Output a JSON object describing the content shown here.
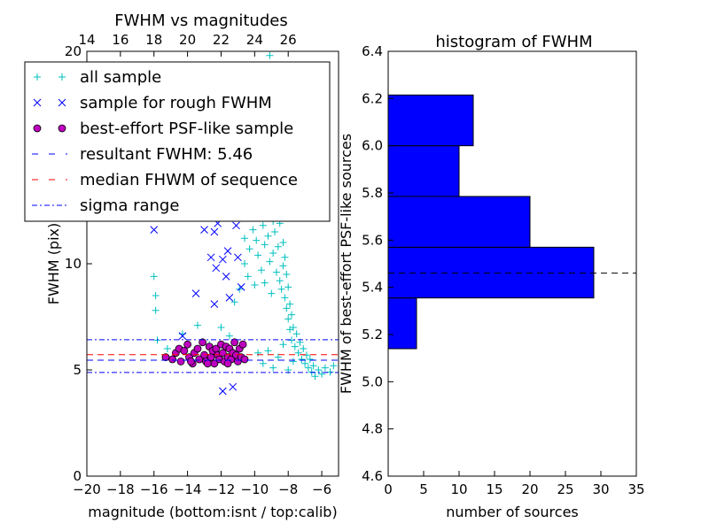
{
  "chart_data": [
    {
      "type": "scatter",
      "title": "FWHM vs magnitudes",
      "xlabel": "magnitude (bottom:isnt / top:calib)",
      "ylabel": "FWHM (pix)",
      "xlim": [
        -20,
        -5
      ],
      "ylim": [
        0,
        20
      ],
      "xticks": [
        "−20",
        "−18",
        "−16",
        "−14",
        "−12",
        "−10",
        "−8",
        "−6"
      ],
      "xtick_values": [
        -20,
        -18,
        -16,
        -14,
        -12,
        -10,
        -8,
        -6
      ],
      "yticks": [
        "0",
        "5",
        "10",
        "20"
      ],
      "ytick_values": [
        0,
        5,
        10,
        20
      ],
      "top_xticks": [
        "14",
        "16",
        "18",
        "20",
        "22",
        "24",
        "26"
      ],
      "top_xtick_values": [
        14,
        16,
        18,
        20,
        22,
        24,
        26
      ],
      "top_axis_offset": 34,
      "legend": {
        "placement": "upper-left",
        "entries": [
          "all sample",
          "sample for rough FWHM",
          "best-effort PSF-like sample",
          "resultant FWHM: 5.46",
          "median FHWM of sequence",
          "sigma range"
        ]
      },
      "hlines": {
        "resultant": 5.46,
        "median": 5.72,
        "sigma_low": 4.88,
        "sigma_high": 6.42
      },
      "colors": {
        "all": "#00bfbf",
        "rough": "#0000ff",
        "best": "#bf00bf",
        "resultant": "#0000ff",
        "median": "#ff0000",
        "sigma": "#0000ff"
      },
      "series_all_sample": [
        [
          -16.0,
          9.4
        ],
        [
          -15.9,
          8.5
        ],
        [
          -15.9,
          7.8
        ],
        [
          -15.8,
          6.4
        ],
        [
          -15.2,
          6.0
        ],
        [
          -14.3,
          6.7
        ],
        [
          -13.4,
          7.1
        ],
        [
          -12.7,
          6.2
        ],
        [
          -12.0,
          7.0
        ],
        [
          -11.5,
          6.6
        ],
        [
          -11.2,
          8.2
        ],
        [
          -10.9,
          8.8
        ],
        [
          -10.6,
          10.0
        ],
        [
          -10.6,
          11.2
        ],
        [
          -10.4,
          9.4
        ],
        [
          -10.3,
          10.7
        ],
        [
          -10.1,
          11.6
        ],
        [
          -10.0,
          9.0
        ],
        [
          -9.9,
          11.1
        ],
        [
          -9.8,
          10.4
        ],
        [
          -9.7,
          12.2
        ],
        [
          -9.6,
          9.7
        ],
        [
          -9.5,
          11.8
        ],
        [
          -9.4,
          10.9
        ],
        [
          -9.4,
          9.1
        ],
        [
          -9.3,
          12.6
        ],
        [
          -9.2,
          11.3
        ],
        [
          -9.1,
          10.1
        ],
        [
          -9.0,
          13.0
        ],
        [
          -9.0,
          8.6
        ],
        [
          -8.9,
          12.0
        ],
        [
          -8.9,
          10.5
        ],
        [
          -8.8,
          14.0
        ],
        [
          -8.8,
          11.5
        ],
        [
          -8.7,
          9.6
        ],
        [
          -8.7,
          12.8
        ],
        [
          -8.6,
          13.5
        ],
        [
          -8.6,
          10.8
        ],
        [
          -8.5,
          11.9
        ],
        [
          -8.5,
          9.2
        ],
        [
          -8.4,
          12.4
        ],
        [
          -8.4,
          8.8
        ],
        [
          -8.3,
          11.0
        ],
        [
          -8.3,
          9.9
        ],
        [
          -8.2,
          10.3
        ],
        [
          -8.2,
          8.4
        ],
        [
          -8.1,
          9.5
        ],
        [
          -8.1,
          7.9
        ],
        [
          -8.0,
          8.9
        ],
        [
          -8.0,
          7.4
        ],
        [
          -7.9,
          8.1
        ],
        [
          -7.9,
          6.9
        ],
        [
          -7.8,
          7.6
        ],
        [
          -7.8,
          6.4
        ],
        [
          -7.7,
          7.0
        ],
        [
          -7.6,
          6.1
        ],
        [
          -7.5,
          6.7
        ],
        [
          -7.4,
          5.8
        ],
        [
          -7.3,
          6.3
        ],
        [
          -7.2,
          5.5
        ],
        [
          -7.1,
          6.0
        ],
        [
          -7.0,
          5.3
        ],
        [
          -6.9,
          5.7
        ],
        [
          -6.8,
          5.1
        ],
        [
          -6.7,
          5.5
        ],
        [
          -6.6,
          4.9
        ],
        [
          -6.5,
          5.2
        ],
        [
          -6.4,
          4.7
        ],
        [
          -6.2,
          5.0
        ],
        [
          -6.0,
          4.8
        ],
        [
          -5.8,
          5.1
        ],
        [
          -5.5,
          4.9
        ],
        [
          -5.3,
          5.2
        ],
        [
          -9.8,
          5.8
        ],
        [
          -9.5,
          5.3
        ],
        [
          -9.2,
          5.9
        ],
        [
          -8.9,
          5.1
        ],
        [
          -8.6,
          5.6
        ],
        [
          -8.3,
          6.2
        ],
        [
          -8.0,
          5.0
        ],
        [
          -7.7,
          5.4
        ],
        [
          -9.6,
          13.8
        ],
        [
          -9.3,
          15.2
        ],
        [
          -9.0,
          14.6
        ],
        [
          -8.7,
          16.3
        ],
        [
          -9.2,
          17.1
        ],
        [
          -8.5,
          15.8
        ],
        [
          -8.9,
          18.4
        ],
        [
          -8.6,
          19.3
        ],
        [
          -9.1,
          19.8
        ],
        [
          -10.4,
          17.6
        ],
        [
          -11.1,
          19.0
        ],
        [
          -8.4,
          14.9
        ],
        [
          -8.2,
          13.1
        ],
        [
          -9.9,
          14.4
        ]
      ],
      "series_rough": [
        [
          -16.0,
          11.6
        ],
        [
          -13.5,
          8.6
        ],
        [
          -14.0,
          12.2
        ],
        [
          -13.0,
          11.6
        ],
        [
          -12.6,
          10.3
        ],
        [
          -12.3,
          9.8
        ],
        [
          -12.2,
          11.9
        ],
        [
          -11.9,
          10.2
        ],
        [
          -11.7,
          9.4
        ],
        [
          -11.0,
          10.3
        ],
        [
          -10.8,
          8.9
        ],
        [
          -11.6,
          10.6
        ],
        [
          -12.4,
          8.1
        ],
        [
          -11.5,
          8.4
        ],
        [
          -14.3,
          6.6
        ],
        [
          -11.9,
          4.0
        ],
        [
          -11.3,
          4.2
        ],
        [
          -13.6,
          12.3
        ],
        [
          -12.4,
          11.5
        ],
        [
          -11.1,
          11.8
        ]
      ],
      "series_best": [
        [
          -15.3,
          5.6
        ],
        [
          -14.9,
          5.5
        ],
        [
          -14.7,
          5.8
        ],
        [
          -14.5,
          6.0
        ],
        [
          -14.4,
          5.4
        ],
        [
          -14.2,
          5.9
        ],
        [
          -14.0,
          6.2
        ],
        [
          -13.9,
          5.6
        ],
        [
          -13.7,
          5.3
        ],
        [
          -13.6,
          5.8
        ],
        [
          -13.4,
          6.0
        ],
        [
          -13.3,
          5.5
        ],
        [
          -13.1,
          6.3
        ],
        [
          -13.0,
          5.7
        ],
        [
          -12.9,
          5.4
        ],
        [
          -12.7,
          6.1
        ],
        [
          -12.6,
          5.6
        ],
        [
          -12.5,
          5.9
        ],
        [
          -12.4,
          5.3
        ],
        [
          -12.3,
          6.0
        ],
        [
          -12.2,
          5.7
        ],
        [
          -12.1,
          5.5
        ],
        [
          -12.0,
          6.2
        ],
        [
          -11.9,
          5.8
        ],
        [
          -11.8,
          5.4
        ],
        [
          -11.7,
          6.1
        ],
        [
          -11.6,
          5.6
        ],
        [
          -11.5,
          6.0
        ],
        [
          -11.4,
          5.5
        ],
        [
          -11.3,
          5.8
        ],
        [
          -11.2,
          6.3
        ],
        [
          -11.1,
          5.7
        ],
        [
          -11.0,
          5.4
        ],
        [
          -10.9,
          6.0
        ],
        [
          -10.8,
          5.6
        ],
        [
          -10.7,
          6.2
        ],
        [
          -10.6,
          5.5
        ],
        [
          -13.8,
          5.4
        ],
        [
          -12.8,
          5.3
        ],
        [
          -11.6,
          5.3
        ]
      ]
    },
    {
      "type": "bar",
      "orientation": "horizontal",
      "title": "histogram of FWHM",
      "xlabel": "number of sources",
      "ylabel": "FWHM of best-effort PSF-like sources",
      "xlim": [
        0,
        35
      ],
      "ylim": [
        4.6,
        6.4
      ],
      "xticks": [
        "0",
        "5",
        "10",
        "15",
        "20",
        "25",
        "30",
        "35"
      ],
      "xtick_values": [
        0,
        5,
        10,
        15,
        20,
        25,
        30,
        35
      ],
      "yticks": [
        "4.6",
        "4.8",
        "5.0",
        "5.2",
        "5.4",
        "5.6",
        "5.8",
        "6.0",
        "6.2",
        "6.4"
      ],
      "ytick_values": [
        4.6,
        4.8,
        5.0,
        5.2,
        5.4,
        5.6,
        5.8,
        6.0,
        6.2,
        6.4
      ],
      "bins": [
        {
          "low": 5.14,
          "high": 5.355,
          "count": 4
        },
        {
          "low": 5.355,
          "high": 5.57,
          "count": 29
        },
        {
          "low": 5.57,
          "high": 5.785,
          "count": 20
        },
        {
          "low": 5.785,
          "high": 6.0,
          "count": 10
        },
        {
          "low": 6.0,
          "high": 6.215,
          "count": 12
        }
      ],
      "hline": 5.46,
      "bar_color": "#0000ff"
    }
  ]
}
